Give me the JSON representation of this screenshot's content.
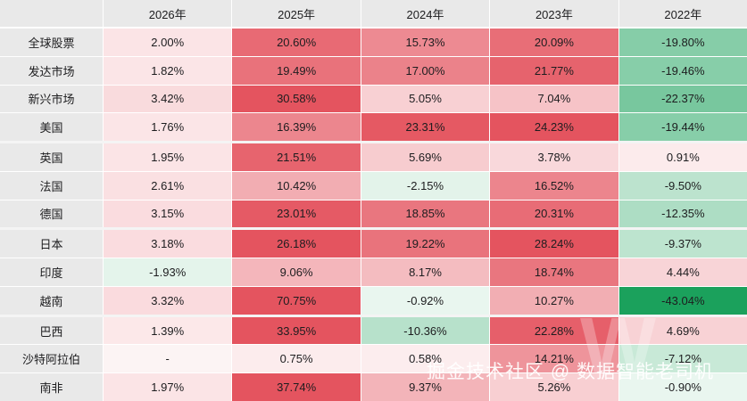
{
  "chart_data": {
    "type": "heatmap",
    "columns": [
      "2026年",
      "2025年",
      "2024年",
      "2023年",
      "2022年"
    ],
    "rows": [
      {
        "label": "全球股票",
        "values": [
          2.0,
          20.6,
          15.73,
          20.09,
          -19.8
        ]
      },
      {
        "label": "发达市场",
        "values": [
          1.82,
          19.49,
          17.0,
          21.77,
          -19.46
        ]
      },
      {
        "label": "新兴市场",
        "values": [
          3.42,
          30.58,
          5.05,
          7.04,
          -22.37
        ]
      },
      {
        "label": "美国",
        "values": [
          1.76,
          16.39,
          23.31,
          24.23,
          -19.44
        ]
      },
      {
        "label": "英国",
        "values": [
          1.95,
          21.51,
          5.69,
          3.78,
          0.91
        ]
      },
      {
        "label": "法国",
        "values": [
          2.61,
          10.42,
          -2.15,
          16.52,
          -9.5
        ]
      },
      {
        "label": "德国",
        "values": [
          3.15,
          23.01,
          18.85,
          20.31,
          -12.35
        ]
      },
      {
        "label": "日本",
        "values": [
          3.18,
          26.18,
          19.22,
          28.24,
          -9.37
        ]
      },
      {
        "label": "印度",
        "values": [
          -1.93,
          9.06,
          8.17,
          18.74,
          4.44
        ]
      },
      {
        "label": "越南",
        "values": [
          3.32,
          70.75,
          -0.92,
          10.27,
          -43.04
        ]
      },
      {
        "label": "巴西",
        "values": [
          1.39,
          33.95,
          -10.36,
          22.28,
          4.69
        ]
      },
      {
        "label": "沙特阿拉伯",
        "values": [
          null,
          0.75,
          0.58,
          14.21,
          -7.12
        ]
      },
      {
        "label": "南非",
        "values": [
          1.97,
          37.74,
          9.37,
          5.26,
          -0.9
        ]
      }
    ],
    "group_end_row_indexes": [
      3,
      6,
      9
    ],
    "value_format": "0.00%",
    "null_display": "-",
    "color_scale": {
      "positive_max": 24,
      "negative_max": 40
    }
  },
  "colors": {
    "positive": "#e4545f",
    "positive_light": "#fdf1f2",
    "negative": "#1ba15c",
    "negative_light": "#eef8f2",
    "blank": "#fcf4f4",
    "header_bg": "#e9e9e9",
    "text": "#1d1d1f",
    "group_separator": "#f4f4f4"
  },
  "watermark": {
    "text": "掘金技术社区 @ 数据智能老司机",
    "big_letter": "W"
  }
}
